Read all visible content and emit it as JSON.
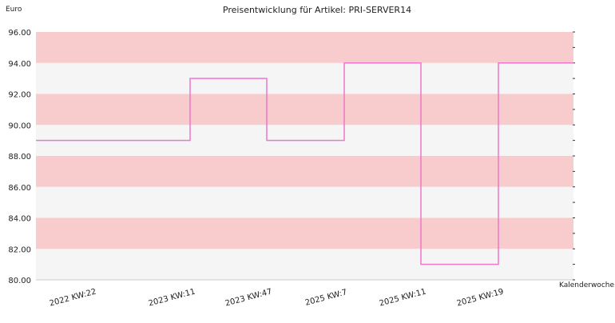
{
  "chart_data": {
    "type": "line",
    "step": "post",
    "title": "Preisentwicklung für Artikel: PRI-SERVER14",
    "ylabel": "Euro",
    "xlabel": "Kalenderwoche",
    "ylim": [
      80,
      96
    ],
    "yticks": [
      "80.00",
      "82.00",
      "84.00",
      "86.00",
      "88.00",
      "90.00",
      "92.00",
      "94.00",
      "96.00"
    ],
    "xticks": [
      "2022 KW:22",
      "2023 KW:11",
      "2023 KW:47",
      "2025 KW:7",
      "2025 KW:11",
      "2025 KW:19"
    ],
    "series": [
      {
        "x": [
          "2022 KW:22",
          "2023 KW:11",
          "2023 KW:47",
          "2025 KW:7",
          "2025 KW:11",
          "2025 KW:19"
        ],
        "values": [
          89,
          93,
          89,
          94,
          81,
          94
        ]
      }
    ],
    "band_colors": [
      "#f8cccc",
      "#f5f5f5"
    ],
    "line_color": "#ee77cc",
    "grid": false,
    "legend": "none"
  }
}
